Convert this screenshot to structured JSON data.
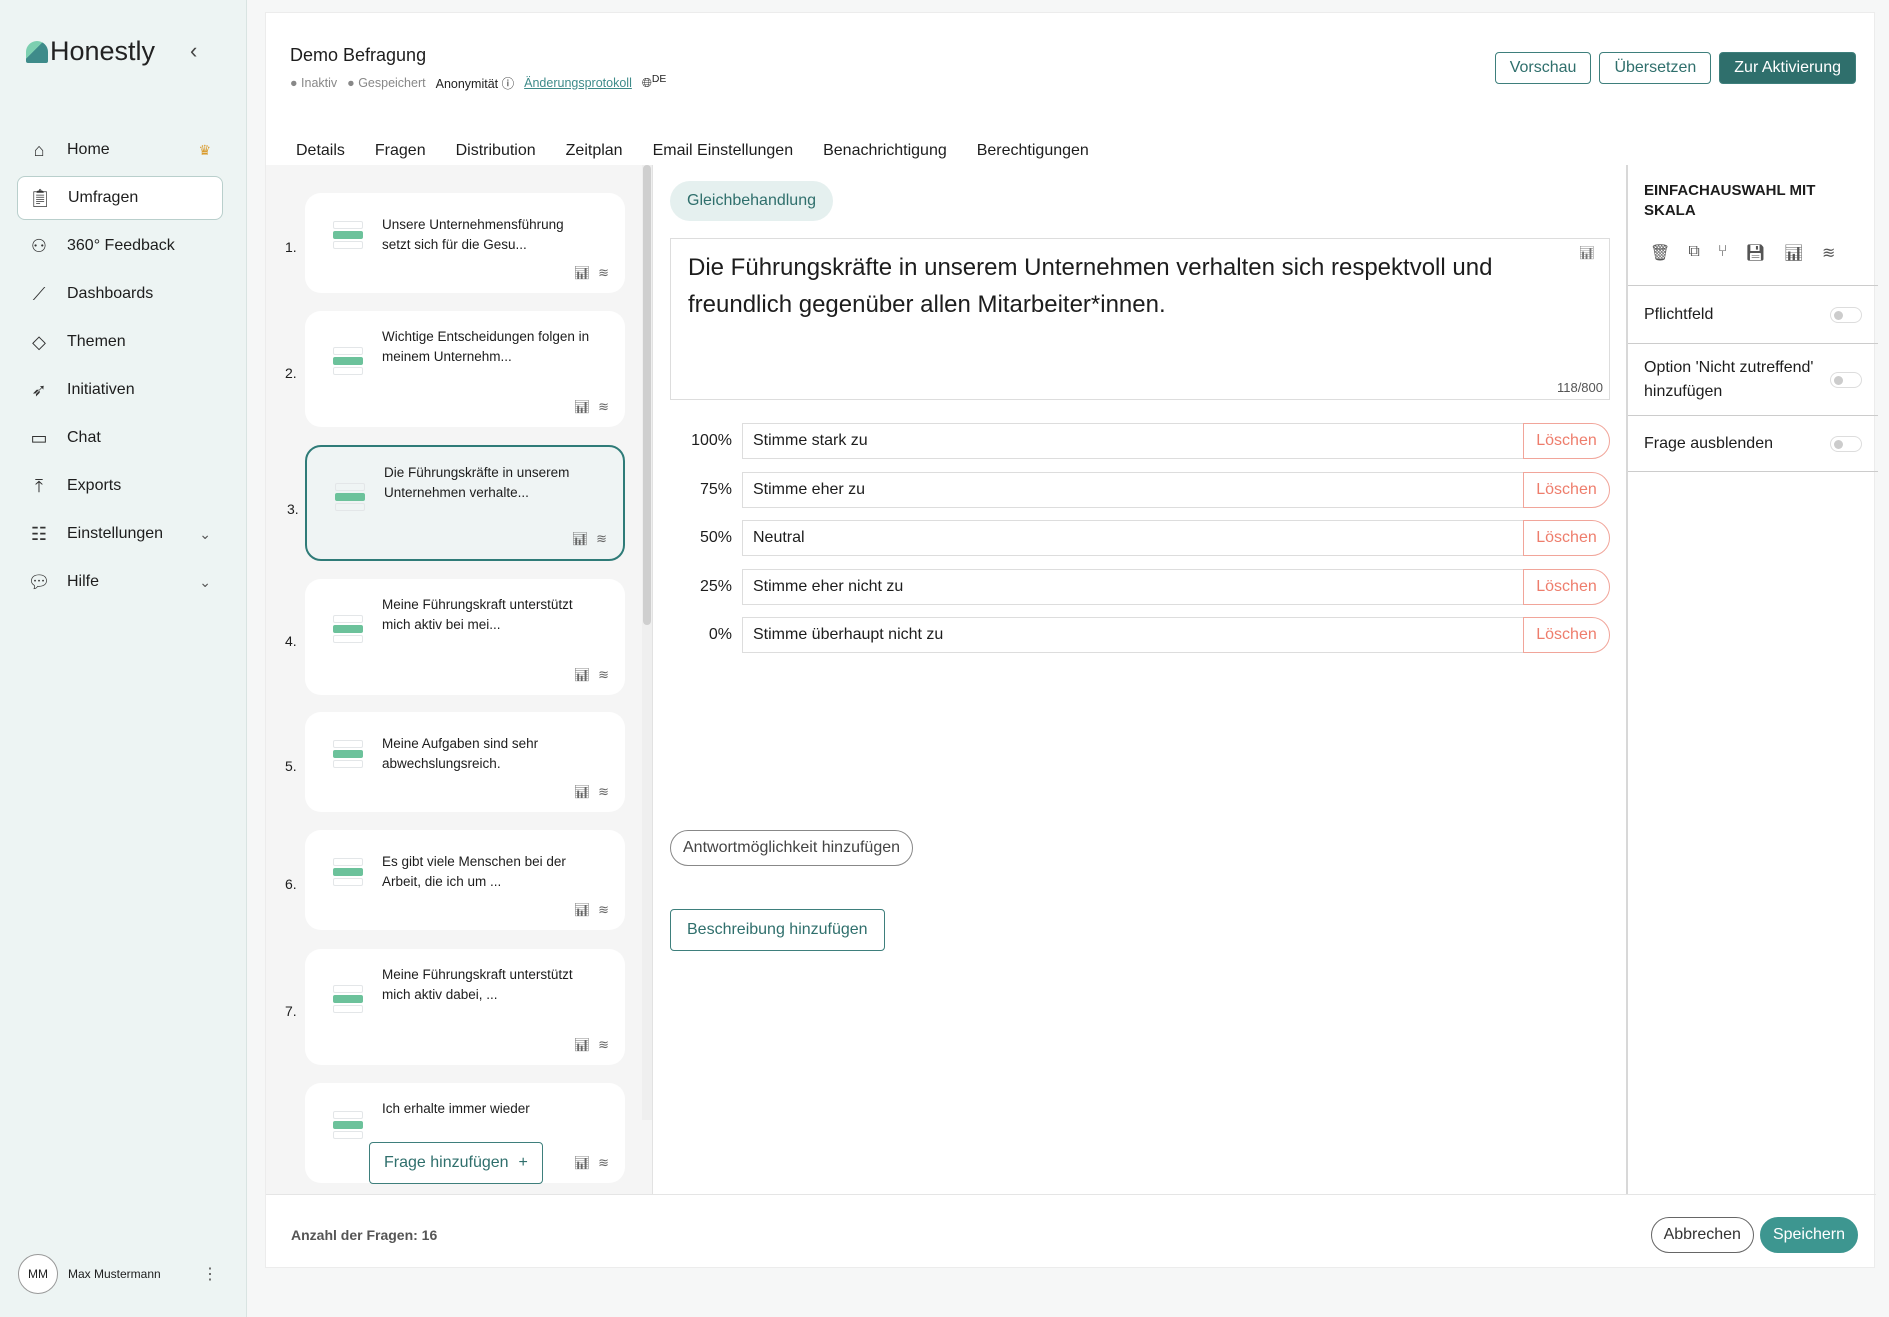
{
  "brand": "Honestly",
  "sidebar": {
    "items": [
      {
        "label": "Home",
        "icon": "home-icon"
      },
      {
        "label": "Umfragen",
        "icon": "clipboard-icon"
      },
      {
        "label": "360° Feedback",
        "icon": "people-icon"
      },
      {
        "label": "Dashboards",
        "icon": "chart-line-icon"
      },
      {
        "label": "Themen",
        "icon": "tag-icon"
      },
      {
        "label": "Initiativen",
        "icon": "rocket-icon"
      },
      {
        "label": "Chat",
        "icon": "chat-icon"
      },
      {
        "label": "Exports",
        "icon": "upload-icon"
      },
      {
        "label": "Einstellungen",
        "icon": "settings-icon"
      },
      {
        "label": "Hilfe",
        "icon": "help-icon"
      }
    ],
    "user": {
      "initials": "MM",
      "name": "Max Mustermann"
    }
  },
  "header": {
    "title": "Demo Befragung",
    "status": "Inaktiv",
    "saved": "Gespeichert",
    "anonymity": "Anonymität",
    "changelog": "Änderungsprotokoll",
    "language": "DE",
    "buttons": {
      "preview": "Vorschau",
      "translate": "Übersetzen",
      "activate": "Zur Aktivierung"
    }
  },
  "tabs": [
    "Details",
    "Fragen",
    "Distribution",
    "Zeitplan",
    "Email Einstellungen",
    "Benachrichtigung",
    "Berechtigungen"
  ],
  "active_tab": "Fragen",
  "questions": [
    {
      "num": "1.",
      "text": "Unsere Unternehmensführung setzt sich für die Gesu..."
    },
    {
      "num": "2.",
      "text": "Wichtige Entscheidungen folgen in meinem Unternehm..."
    },
    {
      "num": "3.",
      "text": "Die Führungskräfte in unserem Unternehmen verhalte..."
    },
    {
      "num": "4.",
      "text": "Meine Führungskraft unterstützt mich aktiv bei mei..."
    },
    {
      "num": "5.",
      "text": "Meine Aufgaben sind sehr abwechslungsreich."
    },
    {
      "num": "6.",
      "text": "Es gibt viele Menschen bei der Arbeit, die ich um ..."
    },
    {
      "num": "7.",
      "text": "Meine Führungskraft unterstützt mich aktiv dabei, ..."
    },
    {
      "num": "",
      "text": "Ich erhalte immer wieder"
    }
  ],
  "add_question": "Frage hinzufügen",
  "editor": {
    "topic": "Gleichbehandlung",
    "question": "Die Führungskräfte in unserem Unternehmen verhalten sich respektvoll und freundlich gegenüber allen Mitarbeiter*innen.",
    "char_count": "118/800",
    "options": [
      {
        "pct": "100%",
        "label": "Stimme stark zu"
      },
      {
        "pct": "75%",
        "label": "Stimme eher zu"
      },
      {
        "pct": "50%",
        "label": "Neutral"
      },
      {
        "pct": "25%",
        "label": "Stimme eher nicht zu"
      },
      {
        "pct": "0%",
        "label": "Stimme überhaupt nicht zu"
      }
    ],
    "delete_label": "Löschen",
    "add_option": "Antwortmöglichkeit hinzufügen",
    "add_description": "Beschreibung hinzufügen"
  },
  "panel": {
    "title": "EINFACHAUSWAHL MIT SKALA",
    "settings": [
      {
        "label": "Pflichtfeld",
        "on": false
      },
      {
        "label": "Option 'Nicht zutreffend' hinzufügen",
        "on": false
      },
      {
        "label": "Frage ausblenden",
        "on": false
      }
    ]
  },
  "footer": {
    "count": "Anzahl der Fragen: 16",
    "cancel": "Abbrechen",
    "save": "Speichern"
  }
}
